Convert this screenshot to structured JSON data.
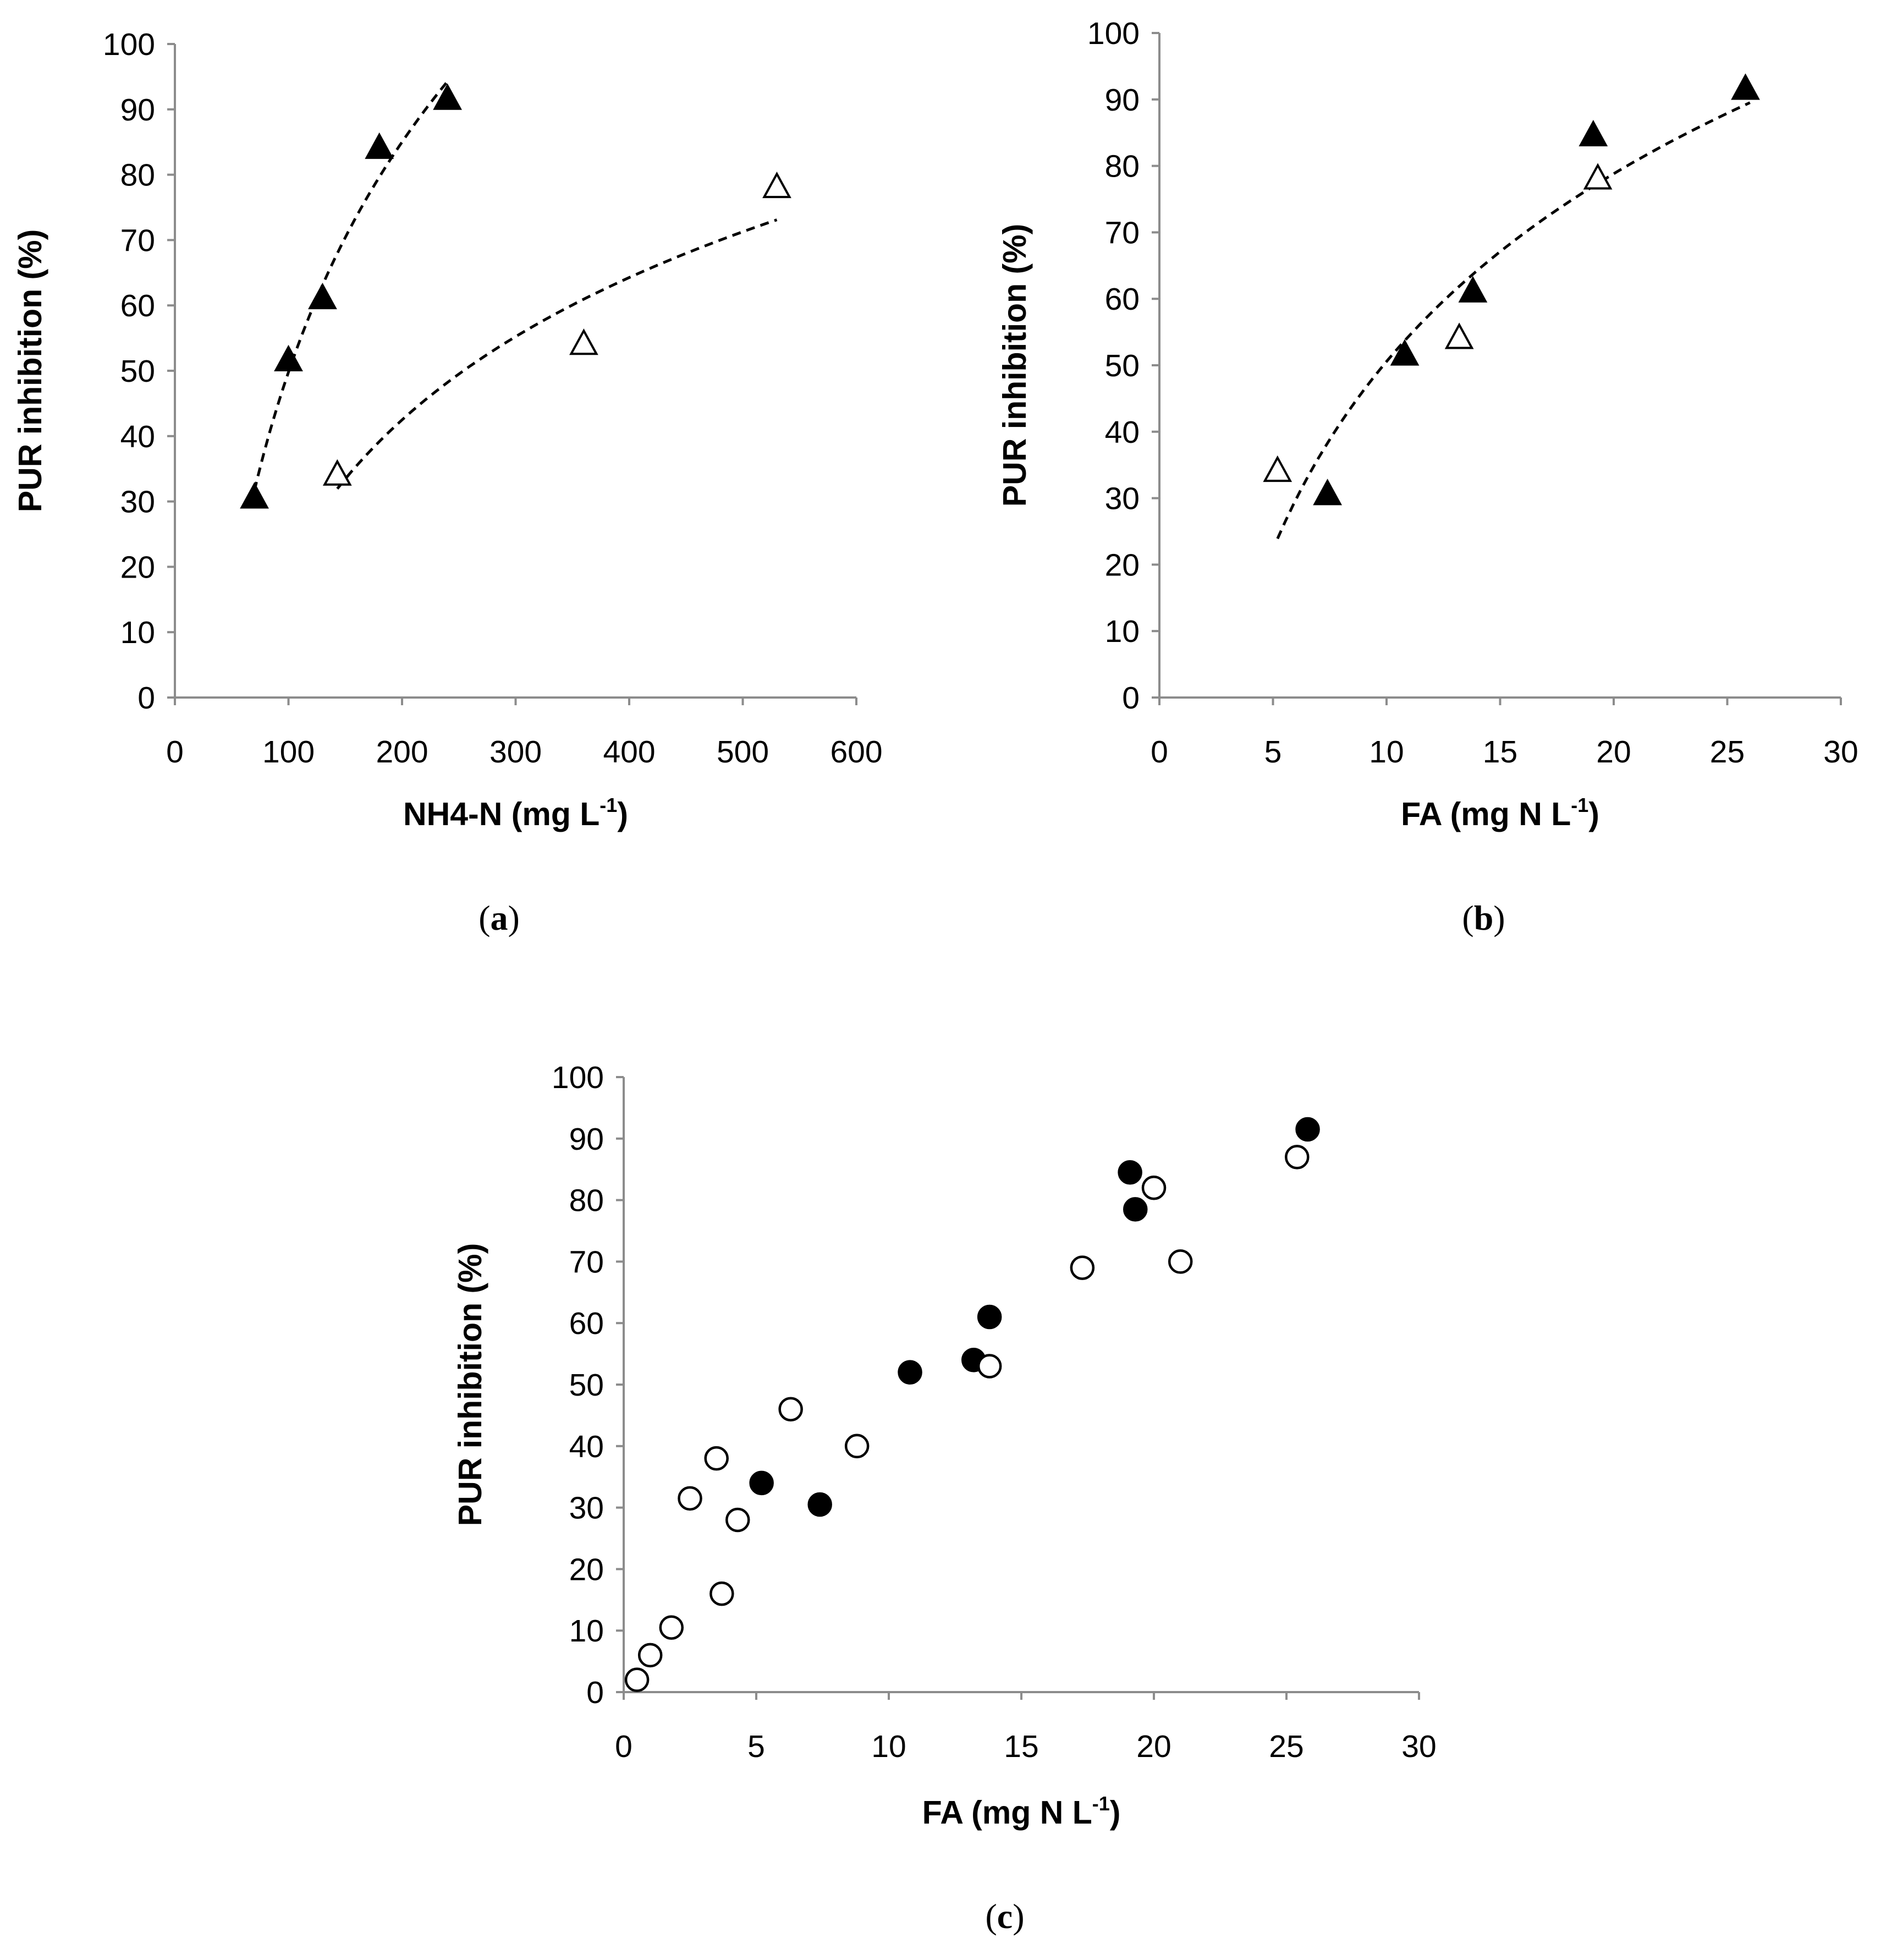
{
  "chart_data": [
    {
      "id": "a",
      "type": "scatter",
      "panel_label": "a",
      "xlabel": "NH4-N (mg L",
      "xlabel_sup": "-1",
      "xlabel_end": ")",
      "ylabel": "PUR inhibition (%)",
      "xlim": [
        0,
        600
      ],
      "ylim": [
        0,
        100
      ],
      "xticks": [
        0,
        100,
        200,
        300,
        400,
        500,
        600
      ],
      "yticks": [
        0,
        10,
        20,
        30,
        40,
        50,
        60,
        70,
        80,
        90,
        100
      ],
      "grid": false,
      "series": [
        {
          "name": "filled triangles",
          "marker": "triangle-filled",
          "points": [
            [
              70,
              30.5
            ],
            [
              100,
              51.5
            ],
            [
              130,
              61
            ],
            [
              180,
              84
            ],
            [
              240,
              91.5
            ]
          ],
          "trend": {
            "kind": "log",
            "x_range": [
              70,
              240
            ]
          }
        },
        {
          "name": "open triangles",
          "marker": "triangle-open",
          "points": [
            [
              143,
              34
            ],
            [
              360,
              54
            ],
            [
              530,
              78
            ]
          ],
          "trend": {
            "kind": "log",
            "x_range": [
              143,
              530
            ]
          }
        }
      ]
    },
    {
      "id": "b",
      "type": "scatter",
      "panel_label": "b",
      "xlabel": "FA (mg N L",
      "xlabel_sup": "-1",
      "xlabel_end": ")",
      "ylabel": "PUR inhibition (%)",
      "xlim": [
        0,
        30
      ],
      "ylim": [
        0,
        100
      ],
      "xticks": [
        0,
        5,
        10,
        15,
        20,
        25,
        30
      ],
      "yticks": [
        0,
        10,
        20,
        30,
        40,
        50,
        60,
        70,
        80,
        90,
        100
      ],
      "grid": false,
      "series": [
        {
          "name": "filled triangles",
          "marker": "triangle-filled",
          "points": [
            [
              7.4,
              30.5
            ],
            [
              10.8,
              51.5
            ],
            [
              13.8,
              61
            ],
            [
              19.1,
              84.5
            ],
            [
              25.8,
              91.5
            ]
          ]
        },
        {
          "name": "open triangles",
          "marker": "triangle-open",
          "points": [
            [
              5.2,
              34
            ],
            [
              13.2,
              54
            ],
            [
              19.3,
              78
            ]
          ]
        }
      ],
      "trend": {
        "kind": "log",
        "x_range": [
          5.2,
          26
        ]
      }
    },
    {
      "id": "c",
      "type": "scatter",
      "panel_label": "c",
      "xlabel": "FA (mg N L",
      "xlabel_sup": "-1",
      "xlabel_end": ")",
      "ylabel": "PUR inhibition (%)",
      "xlim": [
        0,
        30
      ],
      "ylim": [
        0,
        100
      ],
      "xticks": [
        0,
        5,
        10,
        15,
        20,
        25,
        30
      ],
      "yticks": [
        0,
        10,
        20,
        30,
        40,
        50,
        60,
        70,
        80,
        90,
        100
      ],
      "grid": false,
      "series": [
        {
          "name": "filled circles",
          "marker": "circle-filled",
          "points": [
            [
              5.2,
              34
            ],
            [
              7.4,
              30.5
            ],
            [
              10.8,
              52
            ],
            [
              13.2,
              54
            ],
            [
              13.8,
              61
            ],
            [
              19.1,
              84.5
            ],
            [
              19.3,
              78.5
            ],
            [
              25.8,
              91.5
            ]
          ]
        },
        {
          "name": "open circles",
          "marker": "circle-open",
          "points": [
            [
              0.5,
              2
            ],
            [
              1.0,
              6
            ],
            [
              1.8,
              10.5
            ],
            [
              2.5,
              31.5
            ],
            [
              3.5,
              38
            ],
            [
              3.7,
              16
            ],
            [
              4.3,
              28
            ],
            [
              6.3,
              46
            ],
            [
              8.8,
              40
            ],
            [
              13.8,
              53
            ],
            [
              17.3,
              69
            ],
            [
              20.0,
              82
            ],
            [
              21.0,
              70
            ],
            [
              25.4,
              87
            ]
          ]
        }
      ]
    }
  ]
}
